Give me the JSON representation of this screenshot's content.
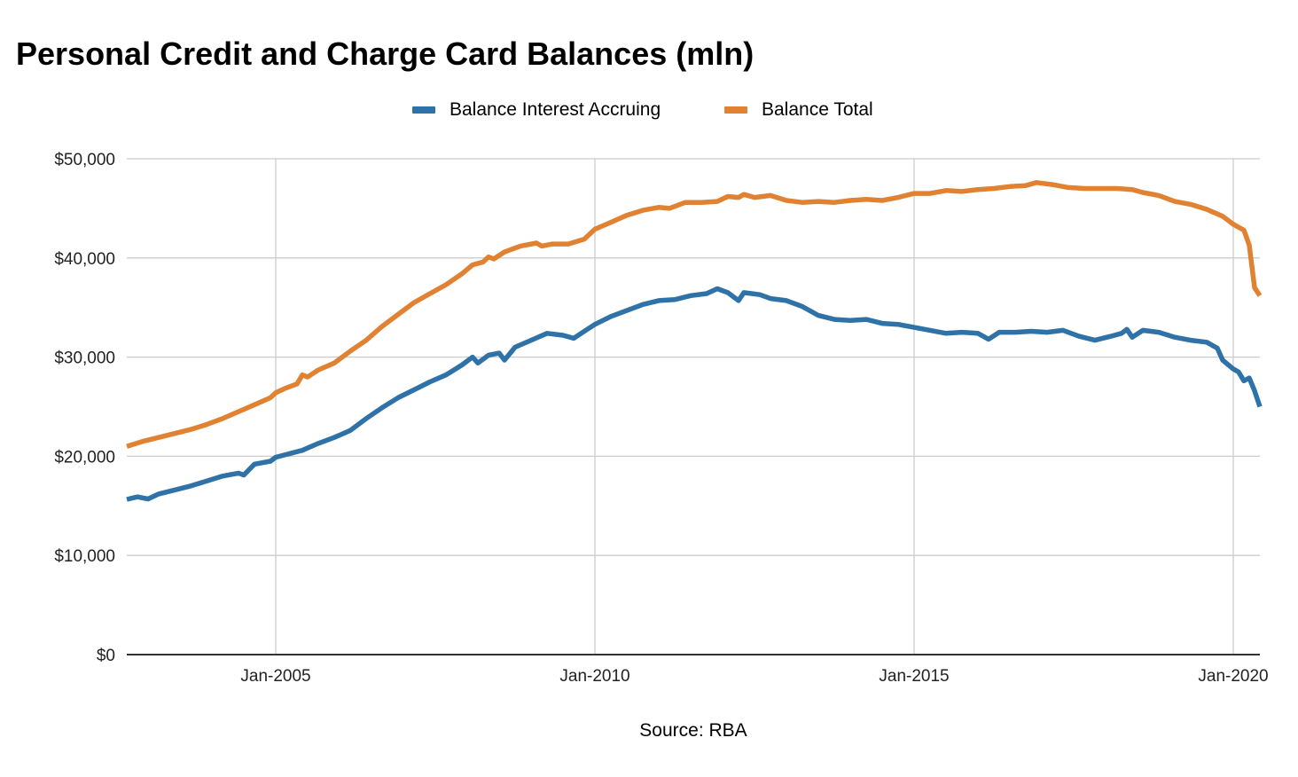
{
  "chart_data": {
    "type": "line",
    "title": "Personal Credit and Charge Card Balances (mln)",
    "xlabel": "Source: RBA",
    "ylabel": "",
    "ylim": [
      0,
      50000
    ],
    "yticks": [
      0,
      10000,
      20000,
      30000,
      40000,
      50000
    ],
    "ytick_labels": [
      "$0",
      "$10,000",
      "$20,000",
      "$30,000",
      "$40,000",
      "$50,000"
    ],
    "xrange": [
      "2002-09",
      "2020-06"
    ],
    "xticks": [
      "2005-01",
      "2010-01",
      "2015-01",
      "2020-01"
    ],
    "xtick_labels": [
      "Jan-2005",
      "Jan-2010",
      "Jan-2015",
      "Jan-2020"
    ],
    "grid": true,
    "legend_position": "top",
    "series": [
      {
        "name": "Balance Interest Accruing",
        "color": "#2e72a8",
        "points": [
          [
            "2002-09",
            15650
          ],
          [
            "2002-11",
            15900
          ],
          [
            "2003-01",
            15700
          ],
          [
            "2003-03",
            16200
          ],
          [
            "2003-06",
            16600
          ],
          [
            "2003-09",
            17000
          ],
          [
            "2003-12",
            17500
          ],
          [
            "2004-03",
            18000
          ],
          [
            "2004-06",
            18300
          ],
          [
            "2004-07",
            18100
          ],
          [
            "2004-09",
            19200
          ],
          [
            "2004-12",
            19500
          ],
          [
            "2005-01",
            19900
          ],
          [
            "2005-06",
            20600
          ],
          [
            "2005-09",
            21300
          ],
          [
            "2005-12",
            21900
          ],
          [
            "2006-03",
            22600
          ],
          [
            "2006-06",
            23800
          ],
          [
            "2006-09",
            24900
          ],
          [
            "2006-12",
            25900
          ],
          [
            "2007-03",
            26700
          ],
          [
            "2007-06",
            27500
          ],
          [
            "2007-09",
            28200
          ],
          [
            "2007-12",
            29200
          ],
          [
            "2008-02",
            30000
          ],
          [
            "2008-03",
            29400
          ],
          [
            "2008-05",
            30200
          ],
          [
            "2008-07",
            30400
          ],
          [
            "2008-08",
            29700
          ],
          [
            "2008-10",
            31000
          ],
          [
            "2009-01",
            31700
          ],
          [
            "2009-04",
            32400
          ],
          [
            "2009-07",
            32200
          ],
          [
            "2009-09",
            31900
          ],
          [
            "2009-11",
            32600
          ],
          [
            "2010-01",
            33300
          ],
          [
            "2010-04",
            34100
          ],
          [
            "2010-07",
            34700
          ],
          [
            "2010-10",
            35300
          ],
          [
            "2011-01",
            35700
          ],
          [
            "2011-04",
            35800
          ],
          [
            "2011-07",
            36200
          ],
          [
            "2011-10",
            36400
          ],
          [
            "2011-12",
            36900
          ],
          [
            "2012-02",
            36500
          ],
          [
            "2012-04",
            35700
          ],
          [
            "2012-05",
            36500
          ],
          [
            "2012-08",
            36300
          ],
          [
            "2012-10",
            35900
          ],
          [
            "2013-01",
            35700
          ],
          [
            "2013-04",
            35100
          ],
          [
            "2013-07",
            34200
          ],
          [
            "2013-10",
            33800
          ],
          [
            "2014-01",
            33700
          ],
          [
            "2014-04",
            33800
          ],
          [
            "2014-07",
            33400
          ],
          [
            "2014-10",
            33300
          ],
          [
            "2015-01",
            33000
          ],
          [
            "2015-04",
            32700
          ],
          [
            "2015-07",
            32400
          ],
          [
            "2015-10",
            32500
          ],
          [
            "2016-01",
            32400
          ],
          [
            "2016-03",
            31800
          ],
          [
            "2016-05",
            32500
          ],
          [
            "2016-08",
            32500
          ],
          [
            "2016-11",
            32600
          ],
          [
            "2017-02",
            32500
          ],
          [
            "2017-05",
            32700
          ],
          [
            "2017-08",
            32100
          ],
          [
            "2017-11",
            31700
          ],
          [
            "2018-02",
            32100
          ],
          [
            "2018-04",
            32400
          ],
          [
            "2018-05",
            32800
          ],
          [
            "2018-06",
            32000
          ],
          [
            "2018-08",
            32700
          ],
          [
            "2018-11",
            32500
          ],
          [
            "2019-02",
            32000
          ],
          [
            "2019-05",
            31700
          ],
          [
            "2019-08",
            31500
          ],
          [
            "2019-10",
            30900
          ],
          [
            "2019-11",
            29700
          ],
          [
            "2020-01",
            28800
          ],
          [
            "2020-02",
            28500
          ],
          [
            "2020-03",
            27600
          ],
          [
            "2020-04",
            27900
          ],
          [
            "2020-05",
            26600
          ],
          [
            "2020-06",
            25000
          ]
        ]
      },
      {
        "name": "Balance Total",
        "color": "#e08232",
        "points": [
          [
            "2002-09",
            21000
          ],
          [
            "2002-12",
            21500
          ],
          [
            "2003-03",
            21900
          ],
          [
            "2003-06",
            22300
          ],
          [
            "2003-09",
            22700
          ],
          [
            "2003-12",
            23200
          ],
          [
            "2004-03",
            23800
          ],
          [
            "2004-06",
            24500
          ],
          [
            "2004-09",
            25200
          ],
          [
            "2004-12",
            25900
          ],
          [
            "2005-01",
            26400
          ],
          [
            "2005-03",
            26900
          ],
          [
            "2005-05",
            27300
          ],
          [
            "2005-06",
            28200
          ],
          [
            "2005-07",
            28000
          ],
          [
            "2005-09",
            28700
          ],
          [
            "2005-12",
            29400
          ],
          [
            "2006-03",
            30600
          ],
          [
            "2006-06",
            31700
          ],
          [
            "2006-09",
            33100
          ],
          [
            "2006-12",
            34300
          ],
          [
            "2007-03",
            35500
          ],
          [
            "2007-06",
            36400
          ],
          [
            "2007-09",
            37300
          ],
          [
            "2007-12",
            38400
          ],
          [
            "2008-02",
            39300
          ],
          [
            "2008-04",
            39600
          ],
          [
            "2008-05",
            40100
          ],
          [
            "2008-06",
            39900
          ],
          [
            "2008-08",
            40600
          ],
          [
            "2008-11",
            41200
          ],
          [
            "2009-02",
            41500
          ],
          [
            "2009-03",
            41200
          ],
          [
            "2009-05",
            41400
          ],
          [
            "2009-08",
            41400
          ],
          [
            "2009-11",
            41900
          ],
          [
            "2010-01",
            42900
          ],
          [
            "2010-04",
            43600
          ],
          [
            "2010-07",
            44300
          ],
          [
            "2010-10",
            44800
          ],
          [
            "2011-01",
            45100
          ],
          [
            "2011-03",
            45000
          ],
          [
            "2011-06",
            45600
          ],
          [
            "2011-09",
            45600
          ],
          [
            "2011-12",
            45700
          ],
          [
            "2012-02",
            46200
          ],
          [
            "2012-04",
            46100
          ],
          [
            "2012-05",
            46400
          ],
          [
            "2012-07",
            46100
          ],
          [
            "2012-10",
            46300
          ],
          [
            "2013-01",
            45800
          ],
          [
            "2013-04",
            45600
          ],
          [
            "2013-07",
            45700
          ],
          [
            "2013-10",
            45600
          ],
          [
            "2014-01",
            45800
          ],
          [
            "2014-04",
            45900
          ],
          [
            "2014-07",
            45800
          ],
          [
            "2014-10",
            46100
          ],
          [
            "2015-01",
            46500
          ],
          [
            "2015-04",
            46500
          ],
          [
            "2015-07",
            46800
          ],
          [
            "2015-10",
            46700
          ],
          [
            "2016-01",
            46900
          ],
          [
            "2016-04",
            47000
          ],
          [
            "2016-07",
            47200
          ],
          [
            "2016-10",
            47300
          ],
          [
            "2016-12",
            47600
          ],
          [
            "2017-03",
            47400
          ],
          [
            "2017-06",
            47100
          ],
          [
            "2017-09",
            47000
          ],
          [
            "2017-12",
            47000
          ],
          [
            "2018-03",
            47000
          ],
          [
            "2018-06",
            46900
          ],
          [
            "2018-08",
            46600
          ],
          [
            "2018-11",
            46300
          ],
          [
            "2019-02",
            45700
          ],
          [
            "2019-05",
            45400
          ],
          [
            "2019-08",
            44900
          ],
          [
            "2019-11",
            44200
          ],
          [
            "2020-01",
            43400
          ],
          [
            "2020-03",
            42800
          ],
          [
            "2020-04",
            41300
          ],
          [
            "2020-05",
            37000
          ],
          [
            "2020-06",
            36200
          ]
        ]
      }
    ]
  }
}
